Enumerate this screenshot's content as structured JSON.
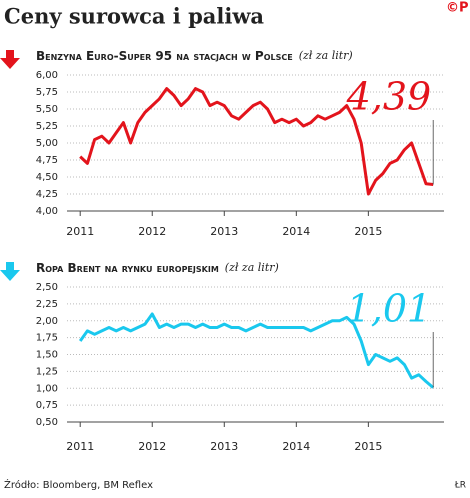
{
  "title": "Ceny surowca i paliwa",
  "logo": "©P",
  "source": "Źródło: Bloomberg, BM Reflex",
  "credit": "ŁR",
  "chart_data": [
    {
      "type": "line",
      "title": "Benzyna Euro-Super 95 na stacjach w Polsce",
      "unit": "(zł za litr)",
      "annotation": "4,39",
      "color": "#e3141c",
      "grid": true,
      "x": [
        2011.0,
        2011.1,
        2011.2,
        2011.3,
        2011.4,
        2011.5,
        2011.6,
        2011.7,
        2011.8,
        2011.9,
        2012.0,
        2012.1,
        2012.2,
        2012.3,
        2012.4,
        2012.5,
        2012.6,
        2012.7,
        2012.8,
        2012.9,
        2013.0,
        2013.1,
        2013.2,
        2013.3,
        2013.4,
        2013.5,
        2013.6,
        2013.7,
        2013.8,
        2013.9,
        2014.0,
        2014.1,
        2014.2,
        2014.3,
        2014.4,
        2014.5,
        2014.6,
        2014.7,
        2014.8,
        2014.9,
        2015.0,
        2015.1,
        2015.2,
        2015.3,
        2015.4,
        2015.5,
        2015.6,
        2015.7,
        2015.8,
        2015.9
      ],
      "values": [
        4.8,
        4.7,
        5.05,
        5.1,
        5.0,
        5.15,
        5.3,
        5.0,
        5.3,
        5.45,
        5.55,
        5.65,
        5.8,
        5.7,
        5.55,
        5.65,
        5.8,
        5.75,
        5.55,
        5.6,
        5.55,
        5.4,
        5.35,
        5.45,
        5.55,
        5.6,
        5.5,
        5.3,
        5.35,
        5.3,
        5.35,
        5.25,
        5.3,
        5.4,
        5.35,
        5.4,
        5.45,
        5.55,
        5.35,
        5.0,
        4.25,
        4.45,
        4.55,
        4.7,
        4.75,
        4.9,
        5.0,
        4.7,
        4.4,
        4.39
      ],
      "xlim": [
        2010.9,
        2016.05
      ],
      "xticks": [
        2011,
        2012,
        2013,
        2014,
        2015
      ],
      "ylim": [
        4.0,
        6.0
      ],
      "yticks": [
        {
          "value": 4.0,
          "label": "4,00"
        },
        {
          "value": 4.25,
          "label": "4,25"
        },
        {
          "value": 4.5,
          "label": "4,50"
        },
        {
          "value": 4.75,
          "label": "4,75"
        },
        {
          "value": 5.0,
          "label": "5,00"
        },
        {
          "value": 5.25,
          "label": "5,25"
        },
        {
          "value": 5.5,
          "label": "5,50"
        },
        {
          "value": 5.75,
          "label": "5,75"
        },
        {
          "value": 6.0,
          "label": "6,00"
        }
      ]
    },
    {
      "type": "line",
      "title": "Ropa Brent na rynku europejskim",
      "unit": "(zł za litr)",
      "annotation": "1,01",
      "color": "#1ac8ee",
      "grid": true,
      "x": [
        2011.0,
        2011.1,
        2011.2,
        2011.3,
        2011.4,
        2011.5,
        2011.6,
        2011.7,
        2011.8,
        2011.9,
        2012.0,
        2012.1,
        2012.2,
        2012.3,
        2012.4,
        2012.5,
        2012.6,
        2012.7,
        2012.8,
        2012.9,
        2013.0,
        2013.1,
        2013.2,
        2013.3,
        2013.4,
        2013.5,
        2013.6,
        2013.7,
        2013.8,
        2013.9,
        2014.0,
        2014.1,
        2014.2,
        2014.3,
        2014.4,
        2014.5,
        2014.6,
        2014.7,
        2014.8,
        2014.9,
        2015.0,
        2015.1,
        2015.2,
        2015.3,
        2015.4,
        2015.5,
        2015.6,
        2015.7,
        2015.8,
        2015.9
      ],
      "values": [
        1.7,
        1.85,
        1.8,
        1.85,
        1.9,
        1.85,
        1.9,
        1.85,
        1.9,
        1.95,
        2.1,
        1.9,
        1.95,
        1.9,
        1.95,
        1.95,
        1.9,
        1.95,
        1.9,
        1.9,
        1.95,
        1.9,
        1.9,
        1.85,
        1.9,
        1.95,
        1.9,
        1.9,
        1.9,
        1.9,
        1.9,
        1.9,
        1.85,
        1.9,
        1.95,
        2.0,
        2.0,
        2.05,
        1.95,
        1.7,
        1.35,
        1.5,
        1.45,
        1.4,
        1.45,
        1.35,
        1.15,
        1.2,
        1.1,
        1.01
      ],
      "xlim": [
        2010.9,
        2016.05
      ],
      "xticks": [
        2011,
        2012,
        2013,
        2014,
        2015
      ],
      "ylim": [
        0.5,
        2.5
      ],
      "yticks": [
        {
          "value": 0.5,
          "label": "0,50"
        },
        {
          "value": 0.75,
          "label": "0,75"
        },
        {
          "value": 1.0,
          "label": "1,00"
        },
        {
          "value": 1.25,
          "label": "1,25"
        },
        {
          "value": 1.5,
          "label": "1,50"
        },
        {
          "value": 1.75,
          "label": "1,75"
        },
        {
          "value": 2.0,
          "label": "2,00"
        },
        {
          "value": 2.25,
          "label": "2,25"
        },
        {
          "value": 2.5,
          "label": "2,50"
        }
      ]
    }
  ]
}
